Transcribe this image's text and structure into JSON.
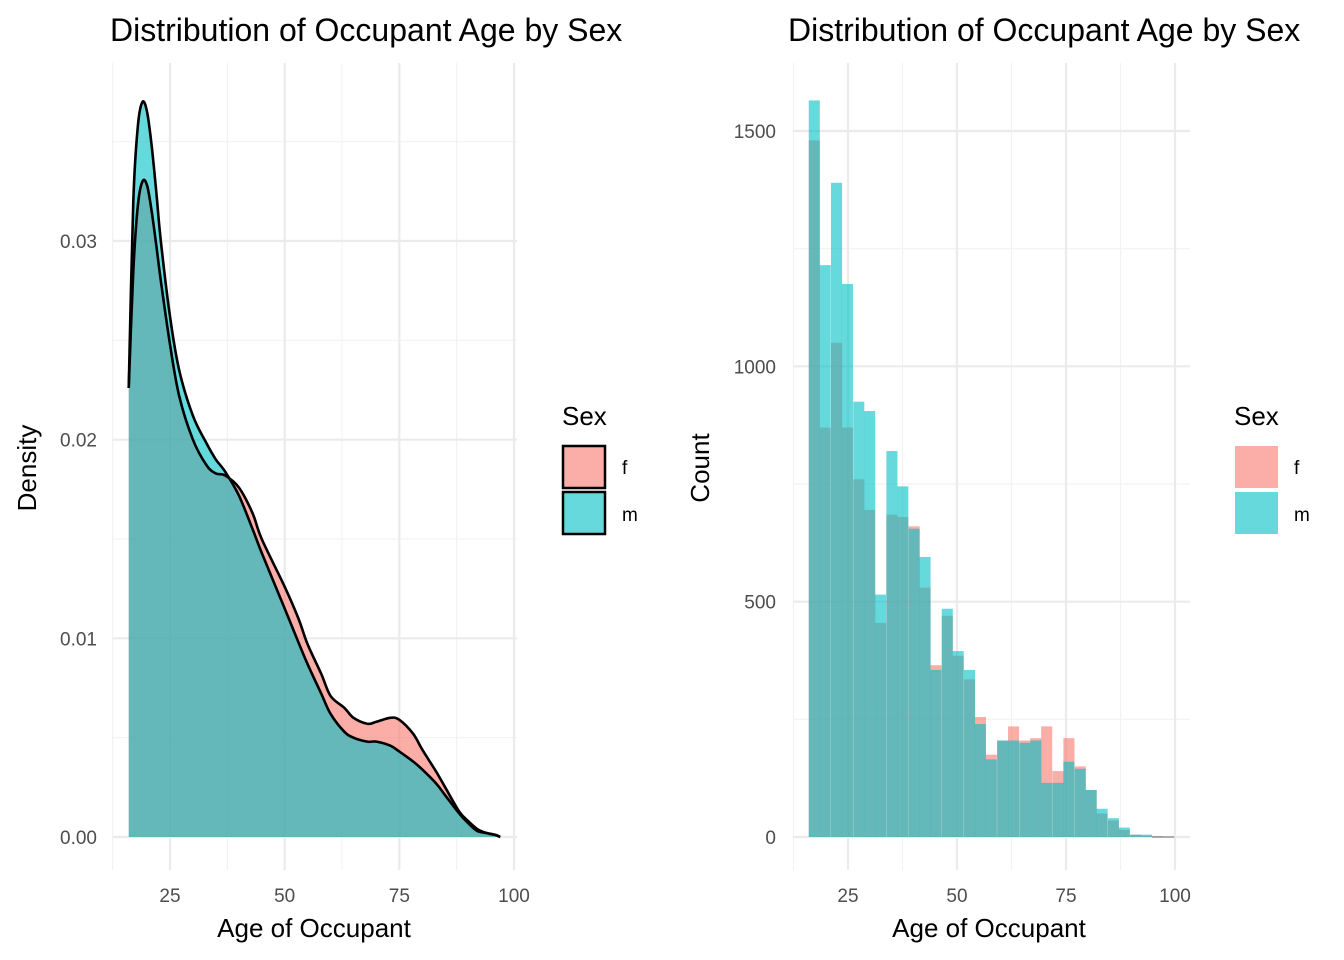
{
  "chart_data": [
    {
      "type": "area",
      "subtype": "density",
      "title": "Distribution of Occupant Age by Sex",
      "xlabel": "Age of Occupant",
      "ylabel": "Density",
      "xlim": [
        16,
        97
      ],
      "ylim": [
        0,
        0.037
      ],
      "x_ticks": [
        25,
        50,
        75,
        100
      ],
      "y_ticks": [
        0.0,
        0.01,
        0.02,
        0.03
      ],
      "x_tick_labels": [
        "25",
        "50",
        "75",
        "100"
      ],
      "y_tick_labels": [
        "0.00",
        "0.01",
        "0.02",
        "0.03"
      ],
      "grid": true,
      "legend": {
        "title": "Sex",
        "position": "right",
        "style": "outlined"
      },
      "series": [
        {
          "name": "f",
          "color": "#F8766D",
          "x": [
            16,
            17,
            18,
            19,
            20,
            21,
            22,
            23,
            25,
            27,
            30,
            33,
            35,
            37,
            40,
            43,
            45,
            50,
            53,
            55,
            58,
            60,
            63,
            65,
            68,
            70,
            73,
            75,
            78,
            80,
            83,
            85,
            88,
            90,
            92,
            94,
            96,
            97
          ],
          "y": [
            0.0226,
            0.0285,
            0.0318,
            0.033,
            0.0328,
            0.0315,
            0.0298,
            0.028,
            0.0248,
            0.0222,
            0.02,
            0.0187,
            0.0183,
            0.0182,
            0.0176,
            0.0163,
            0.015,
            0.0126,
            0.011,
            0.0097,
            0.0082,
            0.0071,
            0.0065,
            0.006,
            0.0057,
            0.0058,
            0.006,
            0.0059,
            0.0052,
            0.0044,
            0.0033,
            0.0025,
            0.0013,
            0.0008,
            0.0004,
            0.0002,
            0.0001,
            0.0
          ]
        },
        {
          "name": "m",
          "color": "#00BFC4",
          "x": [
            16,
            17,
            18,
            19,
            20,
            21,
            22,
            23,
            25,
            27,
            30,
            33,
            35,
            37,
            40,
            43,
            45,
            50,
            53,
            55,
            58,
            60,
            63,
            65,
            68,
            70,
            73,
            75,
            78,
            80,
            83,
            85,
            88,
            90,
            92,
            94,
            96,
            97
          ],
          "y": [
            0.0226,
            0.032,
            0.0358,
            0.037,
            0.0365,
            0.0348,
            0.0325,
            0.03,
            0.0262,
            0.0235,
            0.0212,
            0.0198,
            0.019,
            0.0184,
            0.0172,
            0.0155,
            0.0143,
            0.0115,
            0.0098,
            0.0087,
            0.0072,
            0.0062,
            0.0053,
            0.005,
            0.0048,
            0.0048,
            0.0046,
            0.0043,
            0.0038,
            0.0034,
            0.0027,
            0.0021,
            0.0012,
            0.0007,
            0.0003,
            0.0002,
            0.0001,
            0.0
          ]
        }
      ]
    },
    {
      "type": "bar",
      "subtype": "histogram",
      "title": "Distribution of Occupant Age by Sex",
      "xlabel": "Age of Occupant",
      "ylabel": "Count",
      "xlim": [
        16,
        100
      ],
      "ylim": [
        0,
        1580
      ],
      "x_ticks": [
        25,
        50,
        75,
        100
      ],
      "y_ticks": [
        0,
        500,
        1000,
        1500
      ],
      "x_tick_labels": [
        "25",
        "50",
        "75",
        "100"
      ],
      "y_tick_labels": [
        "0",
        "500",
        "1000",
        "1500"
      ],
      "grid": true,
      "legend": {
        "title": "Sex",
        "position": "right",
        "style": "filled"
      },
      "bin_width": 2.54,
      "bin_starts": [
        16.0,
        18.5,
        21.1,
        23.6,
        26.2,
        28.7,
        31.2,
        33.8,
        36.3,
        38.9,
        41.4,
        43.9,
        46.5,
        49.0,
        51.6,
        54.1,
        56.6,
        59.2,
        61.7,
        64.3,
        66.8,
        69.3,
        71.9,
        74.4,
        77.0,
        79.5,
        82.0,
        84.6,
        87.1,
        89.7,
        92.2,
        94.7,
        97.3
      ],
      "series": [
        {
          "name": "f",
          "color": "#F8766D",
          "values": [
            1480,
            870,
            1050,
            870,
            760,
            695,
            455,
            685,
            680,
            660,
            530,
            365,
            470,
            385,
            335,
            255,
            175,
            205,
            235,
            205,
            210,
            235,
            140,
            210,
            150,
            100,
            50,
            35,
            15,
            5,
            3,
            2,
            0
          ]
        },
        {
          "name": "m",
          "color": "#00BFC4",
          "values": [
            1565,
            1215,
            1390,
            1175,
            925,
            905,
            515,
            820,
            745,
            655,
            595,
            355,
            485,
            395,
            355,
            240,
            165,
            205,
            205,
            200,
            205,
            115,
            115,
            160,
            145,
            100,
            60,
            40,
            20,
            5,
            5,
            2,
            0
          ]
        }
      ]
    }
  ]
}
